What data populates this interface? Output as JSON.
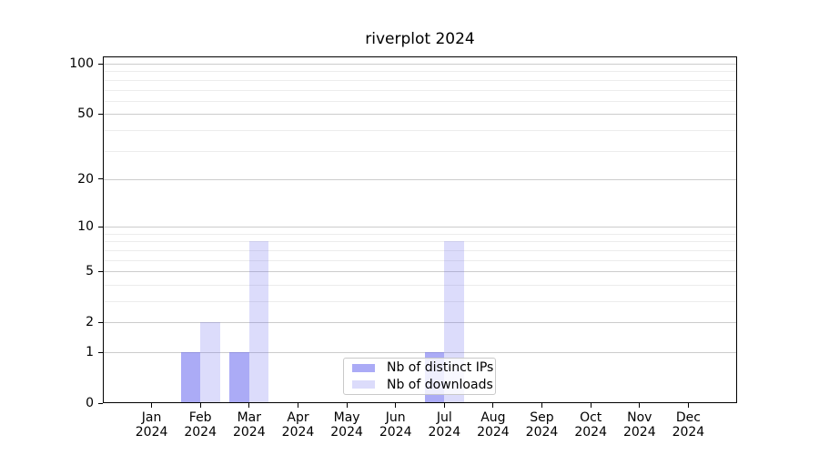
{
  "chart_data": {
    "type": "bar",
    "title": "riverplot 2024",
    "categories": [
      "Jan",
      "Feb",
      "Mar",
      "Apr",
      "May",
      "Jun",
      "Jul",
      "Aug",
      "Sep",
      "Oct",
      "Nov",
      "Dec"
    ],
    "category_year": "2024",
    "series": [
      {
        "name": "Nb of distinct IPs",
        "values": [
          0,
          1,
          1,
          0,
          0,
          0,
          1,
          0,
          0,
          0,
          0,
          0
        ]
      },
      {
        "name": "Nb of downloads",
        "values": [
          0,
          2,
          8,
          0,
          0,
          0,
          8,
          0,
          0,
          0,
          0,
          0
        ]
      }
    ],
    "xlabel": "",
    "ylabel": "",
    "y_scale": "log10(1+y)",
    "y_major_ticks": [
      0,
      1,
      2,
      5,
      10,
      20,
      50,
      100
    ],
    "y_minor_ticks": [
      3,
      4,
      6,
      7,
      8,
      9,
      30,
      40,
      60,
      70,
      80,
      90
    ],
    "ylim": [
      0,
      110
    ],
    "grid": "horizontal",
    "legend_position": "lower center-right inside plot"
  },
  "colors": {
    "distinct_ips_fill": "rgba(102,102,238,0.55)",
    "downloads_fill": "rgba(102,102,238,0.23)",
    "distinct_ips_hex_on_white": "#abaaf6",
    "downloads_hex_on_white": "#dcdcfa",
    "major_gridline": "#cccccc",
    "minor_gridline": "#ececec",
    "axis": "#000000",
    "legend_border": "#c9c9c9",
    "text": "#000000",
    "background": "#ffffff"
  }
}
